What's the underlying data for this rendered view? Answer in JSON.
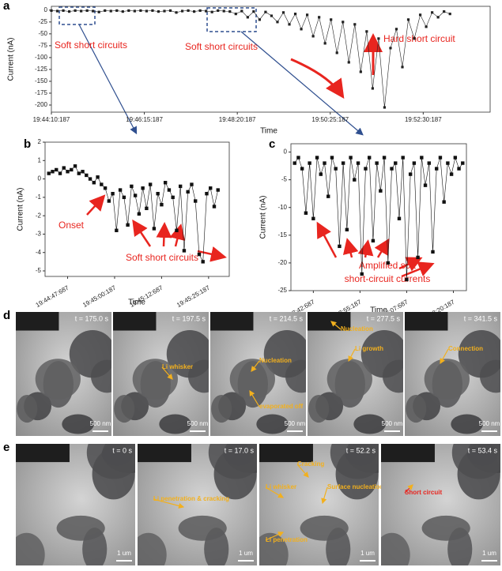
{
  "chart_data": [
    {
      "type": "line",
      "label": "a",
      "x_label": "Time",
      "y_label": "Current (nA)",
      "annotations": [
        "Soft short circuits",
        "Soft short circuits",
        "Hard short circuit"
      ],
      "xlim": [
        0,
        590
      ],
      "ylim": [
        -215,
        8
      ],
      "xticks": [
        {
          "value": 0,
          "label": "19:44:10:187"
        },
        {
          "value": 125,
          "label": "19:46:15:187"
        },
        {
          "value": 250,
          "label": "19:48:20:187"
        },
        {
          "value": 375,
          "label": "19:50:25:187"
        },
        {
          "value": 500,
          "label": "19:52:30:187"
        }
      ],
      "yticks": [
        0,
        -25,
        -50,
        -75,
        -100,
        -125,
        -150,
        -175,
        -200
      ],
      "series": [
        {
          "color": "#222222",
          "x": [
            0,
            8,
            16,
            24,
            32,
            40,
            48,
            56,
            64,
            72,
            80,
            88,
            96,
            104,
            112,
            120,
            128,
            136,
            144,
            152,
            160,
            168,
            176,
            184,
            192,
            200,
            208,
            216,
            224,
            232,
            240,
            248,
            256,
            264,
            272,
            280,
            288,
            296,
            304,
            312,
            320,
            328,
            336,
            344,
            352,
            360,
            368,
            376,
            384,
            392,
            400,
            408,
            416,
            424,
            432,
            440,
            448,
            456,
            464,
            472,
            480,
            488,
            496,
            504,
            512,
            520,
            528,
            536
          ],
          "values": [
            -1,
            -2,
            -1,
            -3,
            -1,
            -2,
            -1,
            -2,
            -4,
            -1,
            -2,
            -1,
            -3,
            -1,
            -2,
            -1,
            -2,
            -1,
            -3,
            -2,
            -1,
            -5,
            -2,
            -1,
            -3,
            -1,
            -2,
            -4,
            -1,
            -2,
            -3,
            -8,
            -2,
            -15,
            -3,
            -20,
            -4,
            -12,
            -25,
            -5,
            -30,
            -8,
            -40,
            -10,
            -55,
            -15,
            -70,
            -20,
            -90,
            -25,
            -110,
            -30,
            -130,
            -45,
            -165,
            -60,
            -205,
            -80,
            -40,
            -120,
            -20,
            -60,
            -10,
            -35,
            -5,
            -15,
            -3,
            -8
          ]
        }
      ]
    },
    {
      "type": "line",
      "label": "b",
      "x_label": "Time",
      "y_label": "Current (nA)",
      "annotations": [
        "Onset",
        "Soft short circuits"
      ],
      "xlim": [
        -6,
        43
      ],
      "ylim": [
        -5.3,
        2
      ],
      "xticks": [
        {
          "value": 0,
          "label": "19:44:47:687"
        },
        {
          "value": 12.5,
          "label": "19:45:00:187"
        },
        {
          "value": 25,
          "label": "19:45:12:687"
        },
        {
          "value": 37.5,
          "label": "19:45:25:187"
        }
      ],
      "yticks": [
        2,
        1,
        0,
        -1,
        -2,
        -3,
        -4,
        -5
      ],
      "series": [
        {
          "color": "#111111",
          "x": [
            -5,
            -4,
            -3,
            -2,
            -1,
            0,
            1,
            2,
            3,
            4,
            5,
            6,
            7,
            8,
            9,
            10,
            11,
            12,
            13,
            14,
            15,
            16,
            17,
            18,
            19,
            20,
            21,
            22,
            23,
            24,
            25,
            26,
            27,
            28,
            29,
            30,
            31,
            32,
            33,
            34,
            35,
            36,
            37,
            38,
            39,
            40
          ],
          "values": [
            0.3,
            0.4,
            0.5,
            0.3,
            0.6,
            0.4,
            0.5,
            0.7,
            0.3,
            0.4,
            0.2,
            0.0,
            -0.2,
            0.1,
            -0.3,
            -0.5,
            -1.2,
            -0.8,
            -2.8,
            -0.6,
            -1.0,
            -2.5,
            -0.4,
            -0.9,
            -1.9,
            -0.5,
            -1.6,
            -0.3,
            -2.7,
            -0.8,
            -1.4,
            -0.2,
            -0.6,
            -1.0,
            -2.8,
            -0.4,
            -3.9,
            -0.7,
            -0.3,
            -1.2,
            -4.1,
            -4.5,
            -0.8,
            -0.5,
            -1.5,
            -0.6
          ]
        }
      ]
    },
    {
      "type": "line",
      "label": "c",
      "x_label": "Time",
      "y_label": "Current (nA)",
      "annotations": [
        "Amplified soft",
        "short-circuit currents"
      ],
      "xlim": [
        -6,
        41
      ],
      "ylim": [
        -25,
        1.5
      ],
      "xticks": [
        {
          "value": 0,
          "label": "19:47:42:687"
        },
        {
          "value": 12.5,
          "label": "19:47:55:187"
        },
        {
          "value": 25,
          "label": "19:48:07:687"
        },
        {
          "value": 37.5,
          "label": "19:48:20:187"
        }
      ],
      "yticks": [
        0,
        -5,
        -10,
        -15,
        -20,
        -25
      ],
      "series": [
        {
          "color": "#111111",
          "x": [
            -5,
            -4,
            -3,
            -2,
            -1,
            0,
            1,
            2,
            3,
            4,
            5,
            6,
            7,
            8,
            9,
            10,
            11,
            12,
            13,
            14,
            15,
            16,
            17,
            18,
            19,
            20,
            21,
            22,
            23,
            24,
            25,
            26,
            27,
            28,
            29,
            30,
            31,
            32,
            33,
            34,
            35,
            36,
            37,
            38,
            39,
            40
          ],
          "values": [
            -2,
            -1,
            -3,
            -11,
            -2,
            -12,
            -1,
            -4,
            -2,
            -8,
            -1,
            -3,
            -17,
            -2,
            -14,
            -1,
            -5,
            -2,
            -22,
            -3,
            -1,
            -16,
            -2,
            -7,
            -1,
            -20,
            -3,
            -2,
            -12,
            -1,
            -23,
            -4,
            -2,
            -19,
            -1,
            -6,
            -2,
            -18,
            -3,
            -1,
            -9,
            -2,
            -4,
            -1,
            -3,
            -2
          ]
        }
      ]
    }
  ],
  "image_panels": [
    {
      "label": "d",
      "frames": [
        {
          "time": "t = 175.0 s",
          "scale": "500 nm",
          "notes": []
        },
        {
          "time": "t = 197.5 s",
          "scale": "500 nm",
          "notes": [
            {
              "text": "Li whisker",
              "color": "#f2b01e"
            }
          ]
        },
        {
          "time": "t = 214.5 s",
          "scale": "500 nm",
          "notes": [
            {
              "text": "Nucleation",
              "color": "#f2b01e"
            },
            {
              "text": "evaporated off",
              "color": "#f2b01e"
            }
          ]
        },
        {
          "time": "t = 277.5 s",
          "scale": "500 nm",
          "notes": [
            {
              "text": "Nucleation",
              "color": "#f2b01e"
            },
            {
              "text": "Li growth",
              "color": "#f2b01e"
            }
          ]
        },
        {
          "time": "t = 341.5 s",
          "scale": "500 nm",
          "notes": [
            {
              "text": "Connection",
              "color": "#f2b01e"
            }
          ]
        }
      ]
    },
    {
      "label": "e",
      "frames": [
        {
          "time": "t = 0 s",
          "scale": "1 um",
          "notes": []
        },
        {
          "time": "t = 17.0 s",
          "scale": "1 um",
          "notes": [
            {
              "text": "Li penetration & cracking",
              "color": "#f2b01e"
            }
          ]
        },
        {
          "time": "t = 52.2 s",
          "scale": "1 um",
          "notes": [
            {
              "text": "Cracking",
              "color": "#f2b01e"
            },
            {
              "text": "Li whisker",
              "color": "#f2b01e"
            },
            {
              "text": "Surface nucleation",
              "color": "#f2b01e"
            },
            {
              "text": "Li penetration",
              "color": "#f2b01e"
            }
          ]
        },
        {
          "time": "t = 53.4 s",
          "scale": "1 um",
          "notes": [
            {
              "text": "Short circuit",
              "color": "#e8251f"
            }
          ]
        }
      ]
    }
  ]
}
